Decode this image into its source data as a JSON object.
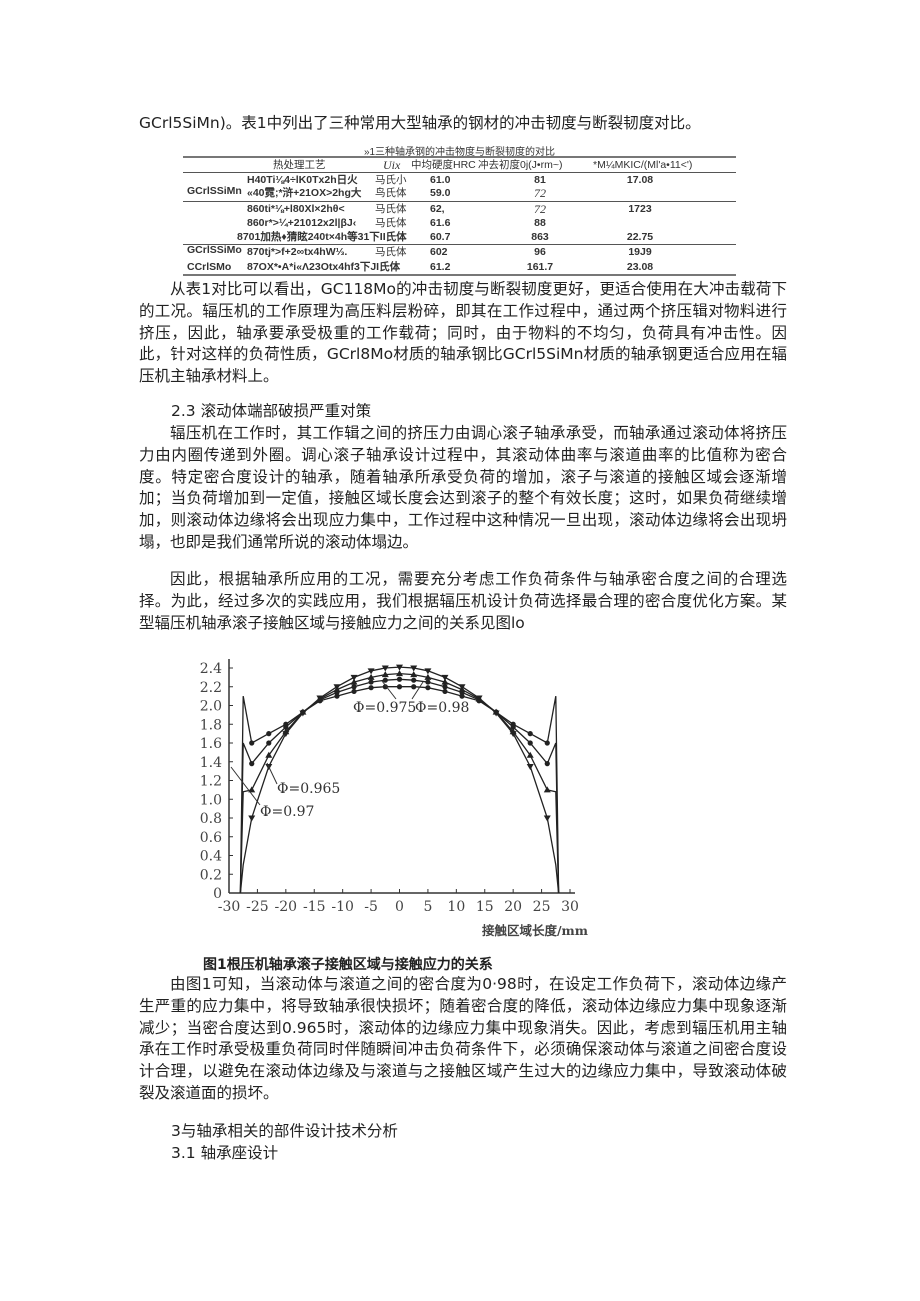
{
  "paragraphs": {
    "p0": "GCrl5SiMn)。表1中列出了三种常用大型轴承的钢材的冲击韧度与断裂韧度对比。",
    "p1": "从表1对比可以看出，GC118Mo的冲击韧度与断裂韧度更好，更适合使用在大冲击载荷下的工况。辐压机的工作原理为高压料层粉碎，即其在工作过程中，通过两个挤压辑对物料进行挤压，因此，轴承要承受极重的工作载荷；同时，由于物料的不均匀，负荷具有冲击性。因此，针对这样的负荷性质，GCrl8Mo材质的轴承钢比GCrl5SiMn材质的轴承钢更适合应用在辐压机主轴承材料上。",
    "h23": "2.3  滚动体端部破损严重对策",
    "p2": "辐压机在工作时，其工作辑之间的挤压力由调心滚子轴承承受，而轴承通过滚动体将挤压力由内圈传递到外圈。调心滚子轴承设计过程中，其滚动体曲率与滚道曲率的比值称为密合度。特定密合度设计的轴承，随着轴承所承受负荷的增加，滚子与滚道的接触区域会逐渐增加；当负荷增加到一定值，接触区域长度会达到滚子的整个有效长度；这时，如果负荷继续增加，则滚动体边缘将会出现应力集中，工作过程中这种情况一旦出现，滚动体边缘将会出现坍塌，也即是我们通常所说的滚动体塌边。",
    "p3": "因此，根据轴承所应用的工况，需要充分考虑工作负荷条件与轴承密合度之间的合理选择。为此，经过多次的实践应用，我们根据辐压机设计负荷选择最合理的密合度优化方案。某型辐压机轴承滚子接触区域与接触应力之间的关系见图lo",
    "caption": "图1根压机轴承滚子接触区域与接触应力的关系",
    "p4": "由图1可知，当滚动体与滚道之间的密合度为0·98时，在设定工作负荷下，滚动体边缘产生严重的应力集中，将导致轴承很快损坏；随着密合度的降低，滚动体边缘应力集中现象逐渐减少；当密合度达到0.965时，滚动体的边缘应力集中现象消失。因此，考虑到辐压机用主轴承在工作时承受极重负荷同时伴随瞬间冲击负荷条件下，必须确保滚动体与滚道之间密合度设计合理，以避免在滚动体边缘及与滚道与之接触区域产生过大的边缘应力集中，导致滚动体破裂及滚道面的损坏。",
    "h3": "3与轴承相关的部件设计技术分析",
    "h31": "3.1  轴承座设计"
  },
  "table": {
    "title": "»1三种轴承钢的冲击物度与断裂韧度的对比",
    "headers": [
      "热处理工艺",
      "Uix",
      "中均硬度HRC",
      "冲去初度0j(J•rm~)",
      "*M¼MKIC/(Ml'a•11<')"
    ],
    "groups": [
      "GCrlSSiMn",
      "GCrlSSiMo",
      "CCrlSMo"
    ],
    "rows": [
      [
        "H40Ti⅛4÷lK0Tx2h日火",
        "马氏小",
        "61.0",
        "81",
        "17.08"
      ],
      [
        "«40霓;*浒+21OX>2hg大",
        "鸟氏体",
        "59.0",
        "72",
        ""
      ],
      [
        "860ti*⅛+l80Xl×2hθ<",
        "马氏体",
        "62,",
        "72",
        "1723"
      ],
      [
        "860r*>¼+21012x2l|βJ‹",
        "马氏体",
        "61.6",
        "88",
        ""
      ],
      [
        "8701加热♦猜眩240t×4h等31下II氏体",
        "",
        "60.7",
        "863",
        "22.75"
      ],
      [
        "870tj*>f+2∞tx4hW⅓.",
        "马氏体",
        "602",
        "96",
        "19J9"
      ],
      [
        "87OX*•A*i«Λ23Otx4hf3下JI氏体",
        "",
        "61.2",
        "161.7",
        "23.08"
      ]
    ]
  },
  "chart_data": {
    "type": "line",
    "title": "",
    "xlabel": "接触区域长度/mm",
    "ylabel": "",
    "xlim": [
      -30,
      30
    ],
    "ylim": [
      0,
      2.4
    ],
    "xticks": [
      "-30",
      "-25",
      "-20",
      "-15",
      "-10",
      "-5",
      "0",
      "5",
      "10",
      "15",
      "20",
      "25",
      "30"
    ],
    "yticks": [
      "0",
      "0.2",
      "0.4",
      "0.6",
      "0.8",
      "1.0",
      "1.2",
      "1.4",
      "1.6",
      "1.8",
      "2.0",
      "2.2",
      "2.4"
    ],
    "grid": false,
    "x": [
      -28,
      -27.5,
      -26,
      -23,
      -20,
      -17,
      -14,
      -11,
      -8,
      -5,
      -2.5,
      0,
      2.5,
      5,
      8,
      11,
      14,
      17,
      20,
      23,
      26,
      27.5,
      28
    ],
    "series": [
      {
        "name": "Φ=0.98",
        "marker": "circle",
        "values": [
          0,
          2.1,
          1.6,
          1.7,
          1.8,
          1.93,
          2.05,
          2.1,
          2.15,
          2.19,
          2.2,
          2.2,
          2.2,
          2.19,
          2.15,
          2.1,
          2.05,
          1.93,
          1.8,
          1.7,
          1.6,
          2.1,
          0
        ]
      },
      {
        "name": "Φ=0.975",
        "marker": "circle",
        "values": [
          0,
          1.6,
          1.38,
          1.6,
          1.77,
          1.93,
          2.06,
          2.14,
          2.2,
          2.25,
          2.27,
          2.28,
          2.27,
          2.25,
          2.2,
          2.14,
          2.06,
          1.93,
          1.77,
          1.6,
          1.38,
          1.6,
          0
        ]
      },
      {
        "name": "Φ=0.97",
        "marker": "triangle-up",
        "values": [
          0,
          1.08,
          1.1,
          1.47,
          1.72,
          1.93,
          2.07,
          2.17,
          2.25,
          2.3,
          2.33,
          2.34,
          2.33,
          2.3,
          2.25,
          2.17,
          2.07,
          1.93,
          1.72,
          1.47,
          1.1,
          1.08,
          0
        ]
      },
      {
        "name": "Φ=0.965",
        "marker": "triangle-down",
        "values": [
          0,
          0.3,
          0.8,
          1.35,
          1.7,
          1.92,
          2.08,
          2.2,
          2.3,
          2.37,
          2.4,
          2.41,
          2.4,
          2.37,
          2.3,
          2.2,
          2.08,
          1.92,
          1.7,
          1.35,
          0.8,
          0.3,
          0
        ]
      }
    ]
  }
}
